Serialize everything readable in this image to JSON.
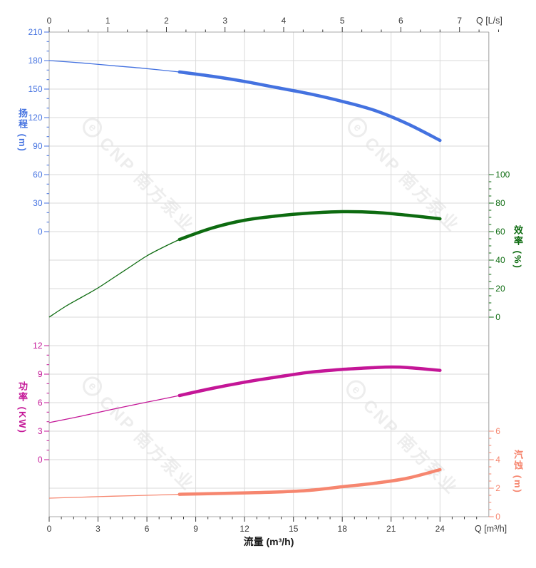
{
  "watermark": {
    "logo_glyph": "e",
    "text": "CNP 南方泵业"
  },
  "chart_data": {
    "type": "line",
    "title": "",
    "grid": true,
    "x_axes": {
      "top": {
        "label": "Q [L/s]",
        "ticks": [
          0,
          1,
          2,
          3,
          4,
          5,
          6,
          7
        ],
        "range": [
          0,
          7.5
        ],
        "major_step": 1,
        "minor_step": 0.33333,
        "color": "#3b3b3b"
      },
      "bottom": {
        "label": "Q [m³/h]",
        "title": "流量 (m³/h)",
        "ticks": [
          0,
          3,
          6,
          9,
          12,
          15,
          18,
          21,
          24
        ],
        "range": [
          0,
          27
        ],
        "major_step": 3,
        "minor_step": 0.75,
        "color": "#3b3b3b"
      }
    },
    "y_axes": {
      "head": {
        "label": "扬程 (m)",
        "ticks": [
          210,
          180,
          150,
          120,
          90,
          60,
          30,
          0
        ],
        "range": [
          0,
          210
        ],
        "major_step": 30,
        "minor_step": 10,
        "side": "left",
        "color": "#4472e0"
      },
      "efficiency": {
        "label": "效率 (%)",
        "ticks": [
          100,
          80,
          60,
          40,
          20,
          0
        ],
        "range": [
          0,
          100
        ],
        "major_step": 20,
        "minor_step": 5,
        "side": "right",
        "color": "#0d6b10"
      },
      "power": {
        "label": "功率 (KW)",
        "ticks": [
          12,
          9,
          6,
          3,
          0
        ],
        "range": [
          0,
          12
        ],
        "major_step": 3,
        "minor_step": 1,
        "side": "left",
        "color": "#c41697"
      },
      "npsh": {
        "label": "汽蚀 (m)",
        "ticks": [
          6,
          4,
          2,
          0
        ],
        "range": [
          0,
          6
        ],
        "major_step": 2,
        "minor_step": 0.5,
        "side": "right",
        "color": "#f6866f"
      }
    },
    "series": [
      {
        "name": "head",
        "axis": "head",
        "color": "#4472e0",
        "emphasis_from": 8,
        "points": [
          [
            0,
            180
          ],
          [
            2,
            177.5
          ],
          [
            4,
            174.5
          ],
          [
            6,
            171.5
          ],
          [
            8,
            168
          ],
          [
            10,
            163.5
          ],
          [
            12,
            158
          ],
          [
            14,
            151.5
          ],
          [
            16,
            145
          ],
          [
            18,
            137
          ],
          [
            20,
            127.5
          ],
          [
            22,
            113.5
          ],
          [
            24,
            96
          ]
        ]
      },
      {
        "name": "efficiency",
        "axis": "efficiency",
        "color": "#0d6b10",
        "emphasis_from": 8,
        "points": [
          [
            0,
            0
          ],
          [
            1,
            7.5
          ],
          [
            2,
            14
          ],
          [
            3,
            20.5
          ],
          [
            4,
            28
          ],
          [
            5,
            35.5
          ],
          [
            6,
            43
          ],
          [
            7,
            49
          ],
          [
            8,
            54.5
          ],
          [
            10,
            62.5
          ],
          [
            12,
            68
          ],
          [
            14,
            71
          ],
          [
            16,
            73
          ],
          [
            18,
            74
          ],
          [
            20,
            73.5
          ],
          [
            22,
            71.5
          ],
          [
            24,
            69
          ]
        ]
      },
      {
        "name": "power",
        "axis": "power",
        "color": "#c41697",
        "emphasis_from": 8,
        "points": [
          [
            0,
            3.9
          ],
          [
            2,
            4.6
          ],
          [
            4,
            5.35
          ],
          [
            6,
            6.05
          ],
          [
            8,
            6.75
          ],
          [
            10,
            7.5
          ],
          [
            12,
            8.15
          ],
          [
            14,
            8.7
          ],
          [
            16,
            9.2
          ],
          [
            18,
            9.5
          ],
          [
            20,
            9.7
          ],
          [
            21,
            9.75
          ],
          [
            22,
            9.7
          ],
          [
            24,
            9.4
          ]
        ]
      },
      {
        "name": "npsh",
        "axis": "npsh",
        "color": "#f6866f",
        "emphasis_from": 8,
        "points": [
          [
            0,
            1.3
          ],
          [
            2,
            1.37
          ],
          [
            4,
            1.44
          ],
          [
            6,
            1.5
          ],
          [
            8,
            1.57
          ],
          [
            10,
            1.62
          ],
          [
            12,
            1.67
          ],
          [
            14,
            1.73
          ],
          [
            16,
            1.85
          ],
          [
            18,
            2.1
          ],
          [
            20,
            2.35
          ],
          [
            22,
            2.7
          ],
          [
            24,
            3.3
          ]
        ]
      }
    ],
    "style": {
      "grid_color": "#dadada",
      "border_color": "#a8a8a8",
      "tick_label_color": "#3b3b3b"
    }
  }
}
